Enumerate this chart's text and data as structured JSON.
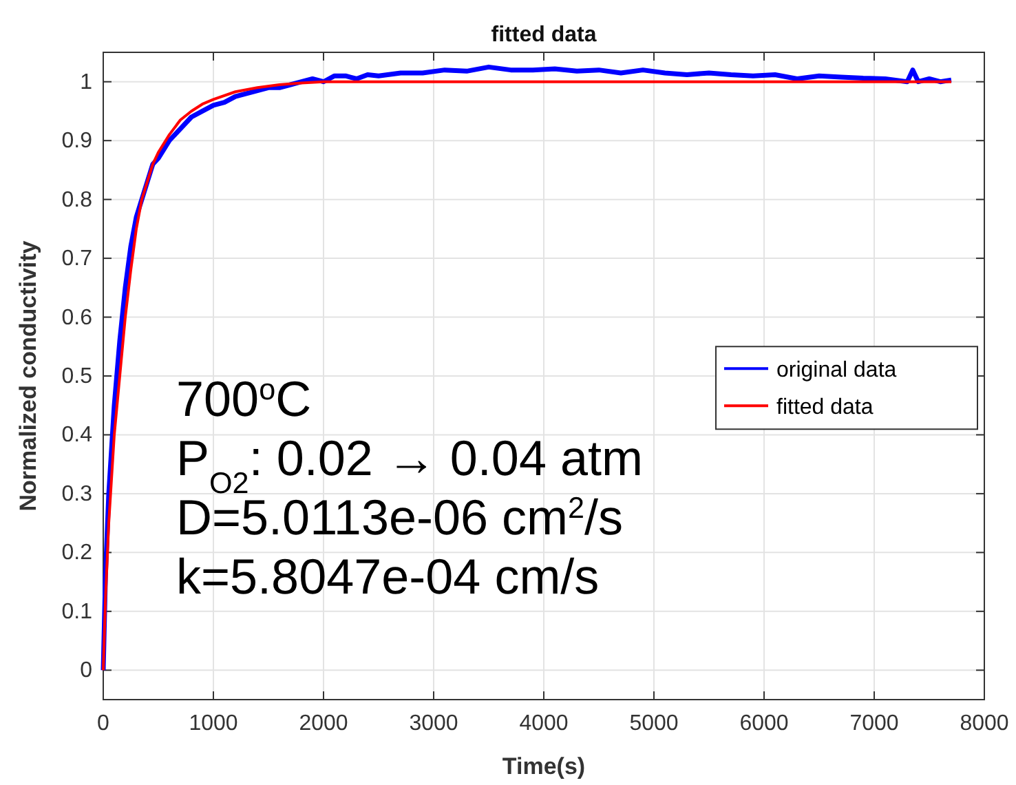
{
  "chart_data": {
    "type": "line",
    "title": "fitted data",
    "xlabel": "Time(s)",
    "ylabel": "Normalized conductivity",
    "xlim": [
      0,
      8000
    ],
    "xticks": [
      0,
      1000,
      2000,
      3000,
      4000,
      5000,
      6000,
      7000,
      8000
    ],
    "ylim": [
      -0.05,
      1.05
    ],
    "yticks": [
      0,
      0.1,
      0.2,
      0.3,
      0.4,
      0.5,
      0.6,
      0.7,
      0.8,
      0.9,
      1
    ],
    "grid": true,
    "legend": "right",
    "series": [
      {
        "name": "original data",
        "color": "#0000ff",
        "x": [
          0,
          20,
          50,
          100,
          150,
          200,
          250,
          300,
          350,
          400,
          450,
          500,
          600,
          700,
          800,
          900,
          1000,
          1100,
          1200,
          1300,
          1400,
          1500,
          1600,
          1700,
          1800,
          1900,
          2000,
          2100,
          2200,
          2300,
          2400,
          2500,
          2700,
          2900,
          3100,
          3300,
          3500,
          3700,
          3900,
          4100,
          4300,
          4500,
          4700,
          4900,
          5100,
          5300,
          5500,
          5700,
          5900,
          6100,
          6300,
          6500,
          6700,
          6900,
          7100,
          7300,
          7350,
          7400,
          7500,
          7600,
          7700
        ],
        "values": [
          0,
          0.16,
          0.3,
          0.45,
          0.56,
          0.65,
          0.72,
          0.77,
          0.8,
          0.83,
          0.86,
          0.87,
          0.9,
          0.92,
          0.94,
          0.95,
          0.96,
          0.965,
          0.975,
          0.98,
          0.985,
          0.99,
          0.99,
          0.995,
          1.0,
          1.005,
          1.0,
          1.01,
          1.01,
          1.005,
          1.012,
          1.01,
          1.015,
          1.015,
          1.02,
          1.018,
          1.025,
          1.02,
          1.02,
          1.022,
          1.018,
          1.02,
          1.015,
          1.02,
          1.015,
          1.012,
          1.015,
          1.012,
          1.01,
          1.012,
          1.005,
          1.01,
          1.008,
          1.006,
          1.005,
          1.0,
          1.02,
          1.0,
          1.005,
          1.0,
          1.003
        ]
      },
      {
        "name": "fitted data",
        "color": "#ff0000",
        "x": [
          0,
          20,
          50,
          100,
          150,
          200,
          250,
          300,
          350,
          400,
          450,
          500,
          600,
          700,
          800,
          900,
          1000,
          1200,
          1400,
          1600,
          1800,
          2000,
          3000,
          4000,
          5000,
          6000,
          7000,
          7700
        ],
        "values": [
          0,
          0.12,
          0.25,
          0.4,
          0.5,
          0.6,
          0.68,
          0.75,
          0.8,
          0.83,
          0.86,
          0.88,
          0.91,
          0.935,
          0.95,
          0.962,
          0.97,
          0.983,
          0.99,
          0.995,
          0.998,
          1.0,
          1.0,
          1.0,
          1.0,
          1.0,
          1.0,
          1.0
        ]
      }
    ],
    "annotations": [
      "700$^{o}$C",
      "P$_{O2}$: 0.02 → 0.04 atm",
      "D=5.0113e-06 cm$^{2}$/s",
      "k=5.8047e-04 cm/s"
    ]
  }
}
